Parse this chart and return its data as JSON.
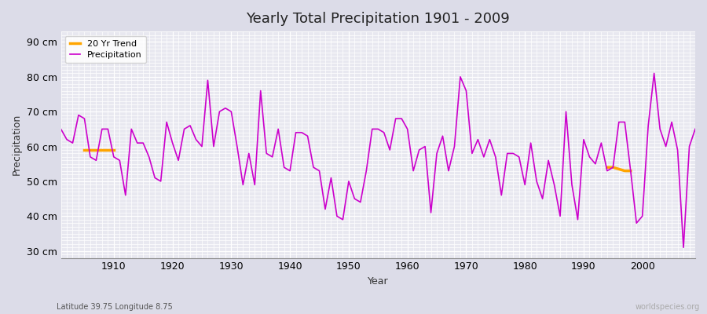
{
  "title": "Yearly Total Precipitation 1901 - 2009",
  "xlabel": "Year",
  "ylabel": "Precipitation",
  "lat_lon_label": "Latitude 39.75 Longitude 8.75",
  "watermark": "worldspecies.org",
  "bg_color": "#dcdce8",
  "plot_bg_color": "#e8e8f0",
  "grid_color": "#ffffff",
  "line_color": "#cc00cc",
  "trend_color": "#ffa500",
  "ylim": [
    28,
    93
  ],
  "yticks": [
    30,
    40,
    50,
    60,
    70,
    80,
    90
  ],
  "ytick_labels": [
    "30 cm",
    "40 cm",
    "50 cm",
    "60 cm",
    "70 cm",
    "80 cm",
    "90 cm"
  ],
  "years": [
    1901,
    1902,
    1903,
    1904,
    1905,
    1906,
    1907,
    1908,
    1909,
    1910,
    1911,
    1912,
    1913,
    1914,
    1915,
    1916,
    1917,
    1918,
    1919,
    1920,
    1921,
    1922,
    1923,
    1924,
    1925,
    1926,
    1927,
    1928,
    1929,
    1930,
    1931,
    1932,
    1933,
    1934,
    1935,
    1936,
    1937,
    1938,
    1939,
    1940,
    1941,
    1942,
    1943,
    1944,
    1945,
    1946,
    1947,
    1948,
    1949,
    1950,
    1951,
    1952,
    1953,
    1954,
    1955,
    1956,
    1957,
    1958,
    1959,
    1960,
    1961,
    1962,
    1963,
    1964,
    1965,
    1966,
    1967,
    1968,
    1969,
    1970,
    1971,
    1972,
    1973,
    1974,
    1975,
    1976,
    1977,
    1978,
    1979,
    1980,
    1981,
    1982,
    1983,
    1984,
    1985,
    1986,
    1987,
    1988,
    1989,
    1990,
    1991,
    1992,
    1993,
    1994,
    1995,
    1996,
    1997,
    1998,
    1999,
    2000,
    2001,
    2002,
    2003,
    2004,
    2005,
    2006,
    2007,
    2008,
    2009
  ],
  "precip": [
    65,
    62,
    61,
    69,
    68,
    57,
    56,
    65,
    65,
    57,
    56,
    46,
    65,
    61,
    61,
    57,
    51,
    50,
    67,
    61,
    56,
    65,
    66,
    62,
    60,
    79,
    60,
    70,
    71,
    70,
    60,
    49,
    58,
    49,
    76,
    58,
    57,
    65,
    54,
    53,
    64,
    64,
    63,
    54,
    53,
    42,
    51,
    40,
    39,
    50,
    45,
    44,
    53,
    65,
    65,
    64,
    59,
    68,
    68,
    65,
    53,
    59,
    60,
    41,
    58,
    63,
    53,
    60,
    80,
    76,
    58,
    62,
    57,
    62,
    57,
    46,
    58,
    58,
    57,
    49,
    61,
    50,
    45,
    56,
    49,
    40,
    70,
    49,
    39,
    62,
    57,
    55,
    61,
    53,
    54,
    67,
    67,
    53,
    38,
    40,
    66,
    81,
    65,
    60,
    67,
    59,
    31,
    60,
    65
  ],
  "trend_x1": [
    1905,
    1906,
    1907,
    1908,
    1909,
    1910
  ],
  "trend_y1": [
    59,
    59,
    59,
    59,
    59,
    59
  ],
  "trend_x2": [
    1994,
    1995,
    1996,
    1997,
    1998
  ],
  "trend_y2": [
    54,
    54,
    53.5,
    53,
    53
  ]
}
